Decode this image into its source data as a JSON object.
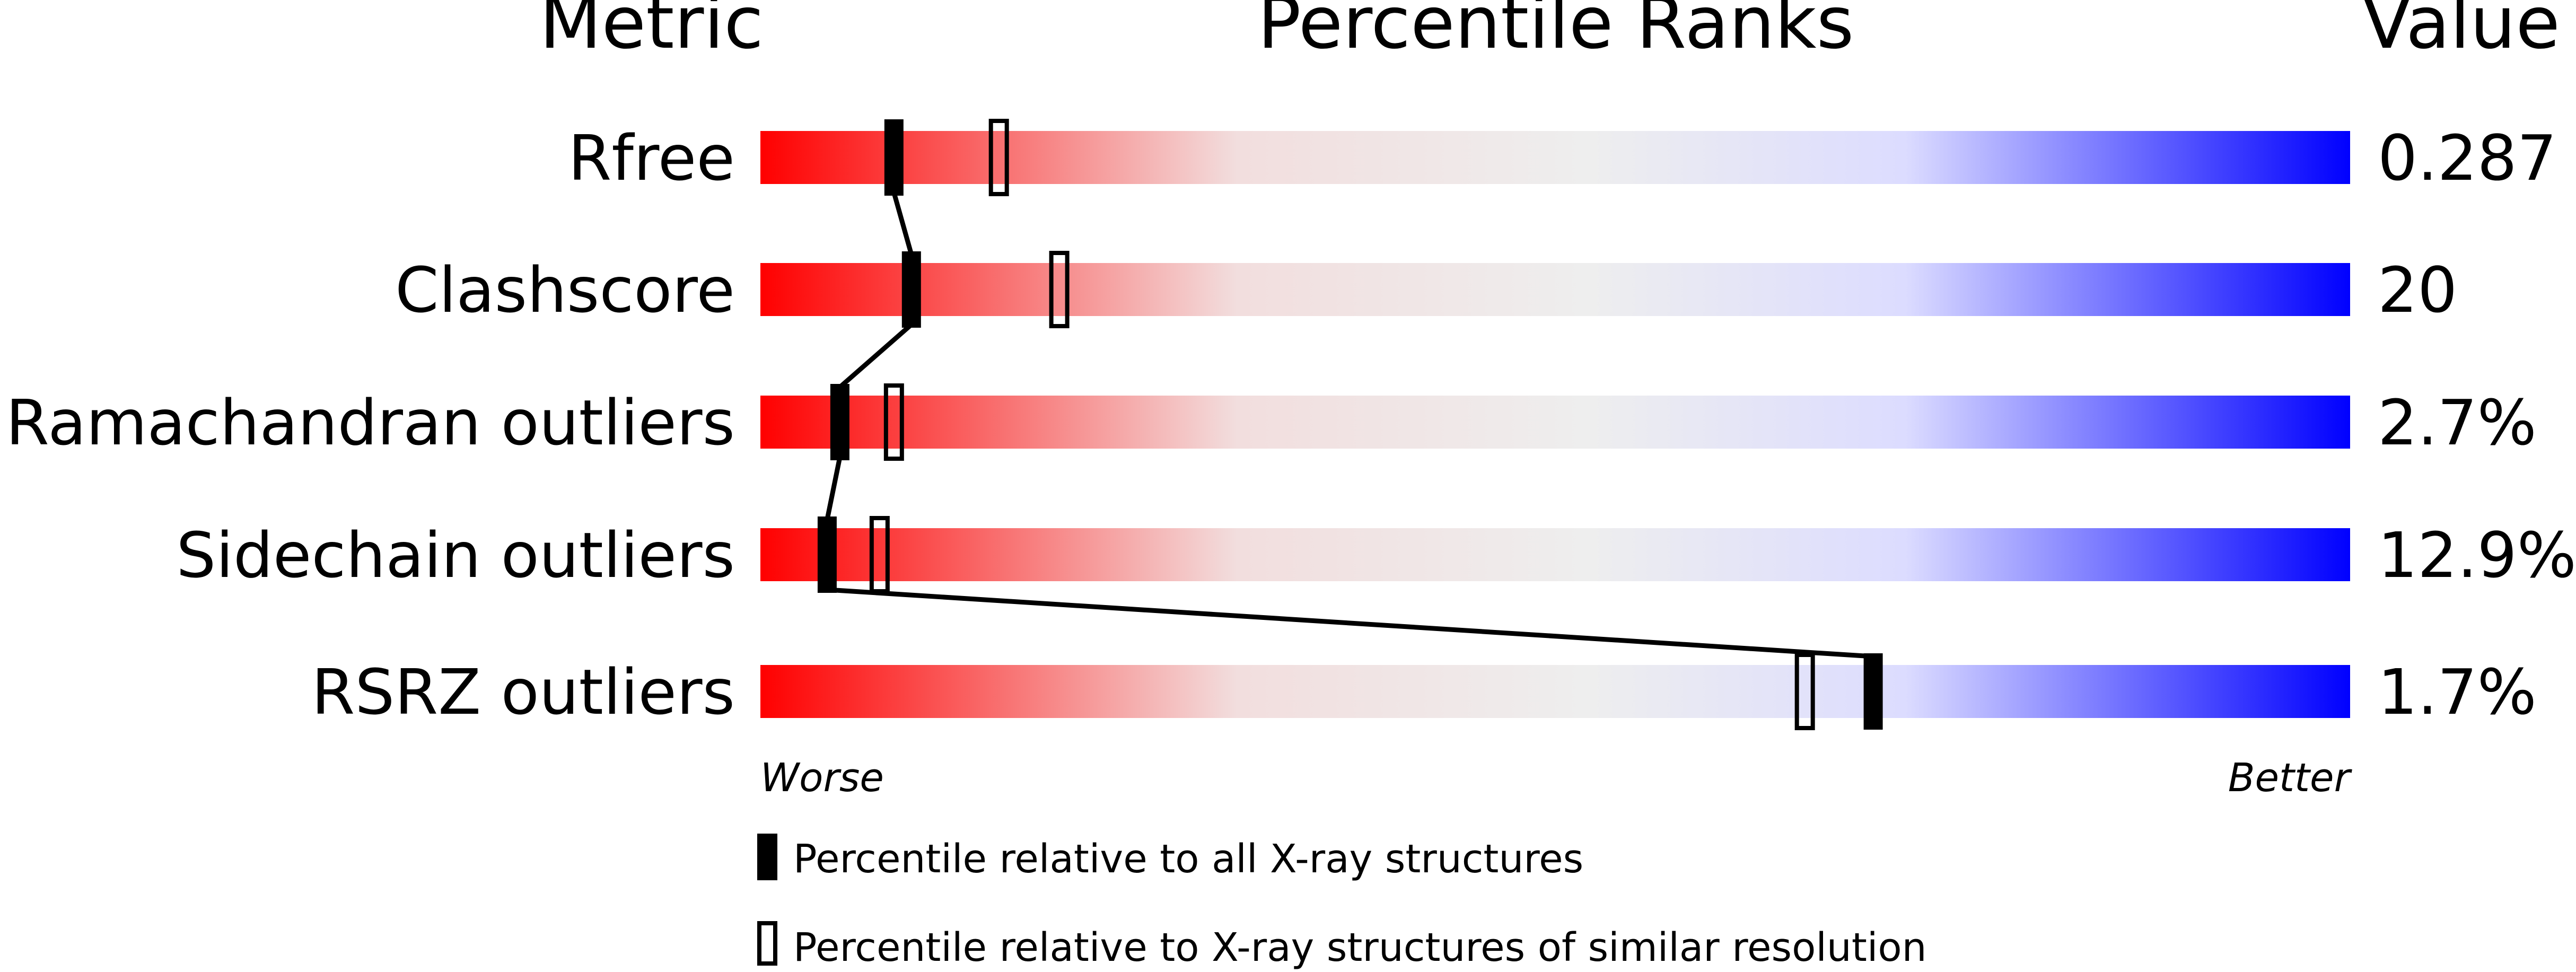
{
  "chart_data": {
    "type": "bar",
    "headers": {
      "metric": "Metric",
      "title": "Percentile Ranks",
      "value": "Value"
    },
    "axis": {
      "left_label": "Worse",
      "right_label": "Better",
      "range": [
        0,
        100
      ]
    },
    "gradient_colors": [
      "#ff0000",
      "#f2dede",
      "#eeeeee",
      "#dcdcff",
      "#0000ff"
    ],
    "metrics": [
      {
        "name": "Rfree",
        "value": "0.287",
        "percentile_all": 8.4,
        "percentile_similar": 15.0
      },
      {
        "name": "Clashscore",
        "value": "20",
        "percentile_all": 9.5,
        "percentile_similar": 18.8
      },
      {
        "name": "Ramachandran outliers",
        "value": "2.7%",
        "percentile_all": 5.0,
        "percentile_similar": 8.4
      },
      {
        "name": "Sidechain outliers",
        "value": "12.9%",
        "percentile_all": 4.2,
        "percentile_similar": 7.5
      },
      {
        "name": "RSRZ outliers",
        "value": "1.7%",
        "percentile_all": 70.0,
        "percentile_similar": 65.7
      }
    ],
    "legend": [
      {
        "kind": "filled",
        "label": "Percentile relative to all X-ray structures"
      },
      {
        "kind": "outline",
        "label": "Percentile relative to X-ray structures of similar resolution"
      }
    ]
  }
}
